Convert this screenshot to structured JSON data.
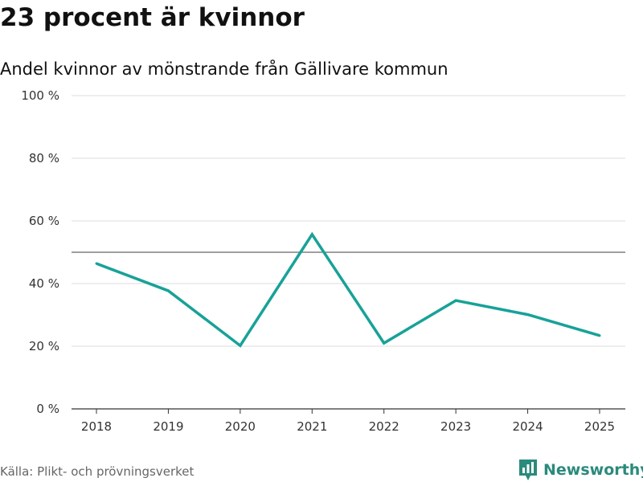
{
  "header": {
    "title": "23 procent är kvinnor",
    "subtitle": "Andel kvinnor av mönstrande från Gällivare kommun"
  },
  "chart_data": {
    "type": "line",
    "title": "23 procent är kvinnor",
    "subtitle": "Andel kvinnor av mönstrande från Gällivare kommun",
    "xlabel": "",
    "ylabel": "",
    "categories": [
      "2018",
      "2019",
      "2020",
      "2021",
      "2022",
      "2023",
      "2024",
      "2025"
    ],
    "series": [
      {
        "values": [
          46.4,
          37.7,
          20.2,
          55.7,
          21.0,
          34.6,
          30.1,
          23.4
        ],
        "color": "#17a298"
      }
    ],
    "ylim": [
      0,
      100
    ],
    "yticks": [
      0,
      20,
      40,
      60,
      80,
      100
    ],
    "ytick_labels": [
      "0 %",
      "20 %",
      "40 %",
      "60 %",
      "80 %",
      "100 %"
    ],
    "reference_line": 50,
    "grid": true
  },
  "footer": {
    "source": "Källa: Plikt- och prövningsverket",
    "brand": "Newsworthy",
    "brand_icon": "bar-chart-icon",
    "brand_color": "#2a8a7c"
  }
}
